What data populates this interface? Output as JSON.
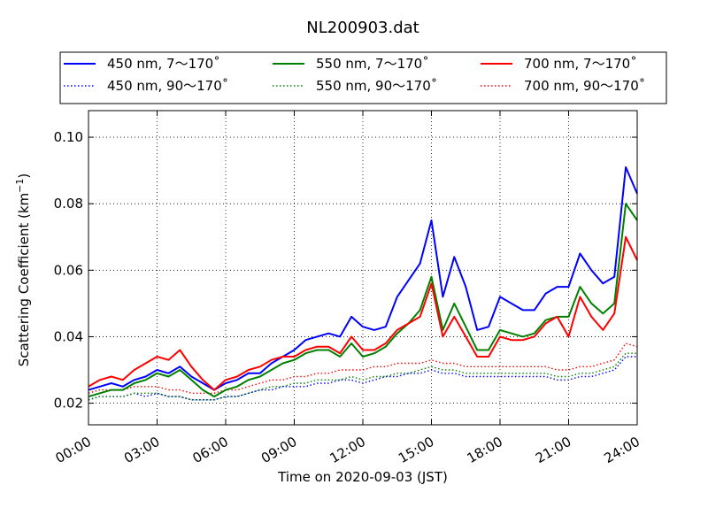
{
  "chart_data": {
    "type": "line",
    "title": "NL200903.dat",
    "xlabel": "Time on 2020-09-03 (JST)",
    "ylabel_main": "Scattering Coefficient (km",
    "ylabel_sup": "−1",
    "ylabel_end": ")",
    "xlim": [
      0,
      24
    ],
    "ylim": [
      0.0135,
      0.108
    ],
    "grid": true,
    "legend_position": "top, outside plot, 3 columns",
    "x_tick_values": [
      0,
      3,
      6,
      9,
      12,
      15,
      18,
      21,
      24
    ],
    "x_tick_labels": [
      "00:00",
      "03:00",
      "06:00",
      "09:00",
      "12:00",
      "15:00",
      "18:00",
      "21:00",
      "24:00"
    ],
    "y_tick_values": [
      0.02,
      0.04,
      0.06,
      0.08,
      0.1
    ],
    "y_tick_labels": [
      "0.02",
      "0.04",
      "0.06",
      "0.08",
      "0.10"
    ],
    "x": [
      0,
      0.5,
      1,
      1.5,
      2,
      2.5,
      3,
      3.5,
      4,
      4.5,
      5,
      5.5,
      6,
      6.5,
      7,
      7.5,
      8,
      8.5,
      9,
      9.5,
      10,
      10.5,
      11,
      11.5,
      12,
      12.5,
      13,
      13.5,
      14,
      14.5,
      15,
      15.5,
      16,
      16.5,
      17,
      17.5,
      18,
      18.5,
      19,
      19.5,
      20,
      20.5,
      21,
      21.5,
      22,
      22.5,
      23,
      23.5,
      24
    ],
    "series": [
      {
        "name": "450 nm, 7～170˚",
        "color": "#0000ff",
        "dash": "solid",
        "values": [
          0.024,
          0.025,
          0.026,
          0.025,
          0.027,
          0.028,
          0.03,
          0.029,
          0.031,
          0.028,
          0.026,
          0.024,
          0.026,
          0.027,
          0.029,
          0.029,
          0.032,
          0.034,
          0.036,
          0.039,
          0.04,
          0.041,
          0.04,
          0.046,
          0.043,
          0.042,
          0.043,
          0.052,
          0.057,
          0.062,
          0.075,
          0.052,
          0.064,
          0.055,
          0.042,
          0.043,
          0.052,
          0.05,
          0.048,
          0.048,
          0.053,
          0.055,
          0.055,
          0.065,
          0.06,
          0.056,
          0.058,
          0.091,
          0.083
        ]
      },
      {
        "name": "450 nm, 90～170˚",
        "color": "#0000ff",
        "dash": "dotted",
        "values": [
          0.021,
          0.022,
          0.022,
          0.022,
          0.023,
          0.022,
          0.023,
          0.022,
          0.022,
          0.021,
          0.021,
          0.021,
          0.022,
          0.022,
          0.023,
          0.024,
          0.024,
          0.025,
          0.025,
          0.025,
          0.026,
          0.026,
          0.027,
          0.027,
          0.026,
          0.027,
          0.028,
          0.028,
          0.029,
          0.029,
          0.03,
          0.029,
          0.029,
          0.028,
          0.028,
          0.028,
          0.028,
          0.028,
          0.028,
          0.028,
          0.028,
          0.027,
          0.027,
          0.028,
          0.028,
          0.029,
          0.03,
          0.034,
          0.034
        ]
      },
      {
        "name": "550 nm, 7～170˚",
        "color": "#008000",
        "dash": "solid",
        "values": [
          0.022,
          0.023,
          0.024,
          0.024,
          0.026,
          0.027,
          0.029,
          0.028,
          0.03,
          0.027,
          0.024,
          0.022,
          0.024,
          0.025,
          0.027,
          0.028,
          0.03,
          0.032,
          0.033,
          0.035,
          0.036,
          0.036,
          0.034,
          0.038,
          0.034,
          0.035,
          0.037,
          0.041,
          0.044,
          0.048,
          0.058,
          0.042,
          0.05,
          0.043,
          0.036,
          0.036,
          0.042,
          0.041,
          0.04,
          0.041,
          0.045,
          0.046,
          0.046,
          0.055,
          0.05,
          0.047,
          0.05,
          0.08,
          0.075
        ]
      },
      {
        "name": "550 nm, 90～170˚",
        "color": "#008000",
        "dash": "dotted",
        "values": [
          0.021,
          0.022,
          0.022,
          0.022,
          0.023,
          0.023,
          0.023,
          0.022,
          0.022,
          0.021,
          0.021,
          0.021,
          0.022,
          0.022,
          0.023,
          0.024,
          0.025,
          0.025,
          0.026,
          0.026,
          0.027,
          0.027,
          0.027,
          0.028,
          0.027,
          0.028,
          0.028,
          0.029,
          0.029,
          0.03,
          0.031,
          0.03,
          0.03,
          0.029,
          0.029,
          0.029,
          0.029,
          0.029,
          0.029,
          0.029,
          0.029,
          0.028,
          0.028,
          0.029,
          0.029,
          0.03,
          0.031,
          0.035,
          0.035
        ]
      },
      {
        "name": "700 nm, 7～170˚",
        "color": "#ff0000",
        "dash": "solid",
        "values": [
          0.025,
          0.027,
          0.028,
          0.027,
          0.03,
          0.032,
          0.034,
          0.033,
          0.036,
          0.031,
          0.027,
          0.024,
          0.027,
          0.028,
          0.03,
          0.031,
          0.033,
          0.034,
          0.034,
          0.036,
          0.037,
          0.037,
          0.035,
          0.04,
          0.036,
          0.036,
          0.038,
          0.042,
          0.044,
          0.046,
          0.056,
          0.04,
          0.046,
          0.04,
          0.034,
          0.034,
          0.04,
          0.039,
          0.039,
          0.04,
          0.044,
          0.046,
          0.04,
          0.052,
          0.046,
          0.042,
          0.047,
          0.07,
          0.063
        ]
      },
      {
        "name": "700 nm, 90～170˚",
        "color": "#ff0000",
        "dash": "dotted",
        "values": [
          0.023,
          0.024,
          0.024,
          0.024,
          0.025,
          0.025,
          0.025,
          0.024,
          0.024,
          0.023,
          0.023,
          0.023,
          0.024,
          0.024,
          0.025,
          0.026,
          0.027,
          0.027,
          0.028,
          0.028,
          0.029,
          0.029,
          0.03,
          0.03,
          0.03,
          0.031,
          0.031,
          0.032,
          0.032,
          0.032,
          0.033,
          0.032,
          0.032,
          0.031,
          0.031,
          0.031,
          0.031,
          0.031,
          0.031,
          0.031,
          0.031,
          0.03,
          0.03,
          0.031,
          0.031,
          0.032,
          0.033,
          0.038,
          0.037
        ]
      }
    ]
  }
}
